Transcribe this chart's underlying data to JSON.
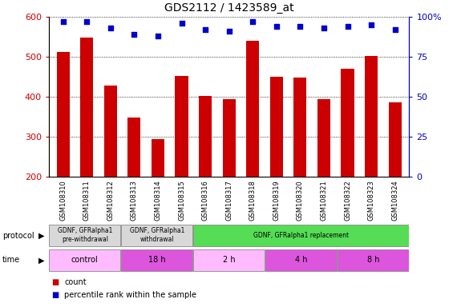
{
  "title": "GDS2112 / 1423589_at",
  "samples": [
    "GSM108310",
    "GSM108311",
    "GSM108312",
    "GSM108313",
    "GSM108314",
    "GSM108315",
    "GSM108316",
    "GSM108317",
    "GSM108318",
    "GSM108319",
    "GSM108320",
    "GSM108321",
    "GSM108322",
    "GSM108323",
    "GSM108324"
  ],
  "bar_values": [
    513,
    549,
    428,
    347,
    293,
    452,
    401,
    393,
    541,
    449,
    447,
    393,
    470,
    502,
    385
  ],
  "dot_values": [
    97,
    97,
    93,
    89,
    88,
    96,
    92,
    91,
    97,
    94,
    94,
    93,
    94,
    95,
    92
  ],
  "bar_color": "#cc0000",
  "dot_color": "#0000cc",
  "ylim_left": [
    200,
    600
  ],
  "ylim_right": [
    0,
    100
  ],
  "yticks_left": [
    200,
    300,
    400,
    500,
    600
  ],
  "yticks_right": [
    0,
    25,
    50,
    75,
    100
  ],
  "ytick_labels_right": [
    "0",
    "25",
    "50",
    "75",
    "100%"
  ],
  "protocol_groups": [
    {
      "label": "GDNF, GFRalpha1\npre-withdrawal",
      "start": 0,
      "end": 3,
      "color": "#d8d8d8"
    },
    {
      "label": "GDNF, GFRalpha1\nwithdrawal",
      "start": 3,
      "end": 6,
      "color": "#d8d8d8"
    },
    {
      "label": "GDNF, GFRalpha1 replacement",
      "start": 6,
      "end": 15,
      "color": "#55dd55"
    }
  ],
  "time_groups": [
    {
      "label": "control",
      "start": 0,
      "end": 3,
      "color": "#ffbbff"
    },
    {
      "label": "18 h",
      "start": 3,
      "end": 6,
      "color": "#dd55dd"
    },
    {
      "label": "2 h",
      "start": 6,
      "end": 9,
      "color": "#ffbbff"
    },
    {
      "label": "4 h",
      "start": 9,
      "end": 12,
      "color": "#dd55dd"
    },
    {
      "label": "8 h",
      "start": 12,
      "end": 15,
      "color": "#dd55dd"
    }
  ],
  "background_color": "#ffffff",
  "plot_bg_color": "#ffffff",
  "xtick_bg_color": "#d8d8d8",
  "grid_color": "#000000",
  "legend_items": [
    {
      "label": "count",
      "color": "#cc0000"
    },
    {
      "label": "percentile rank within the sample",
      "color": "#0000cc"
    }
  ]
}
